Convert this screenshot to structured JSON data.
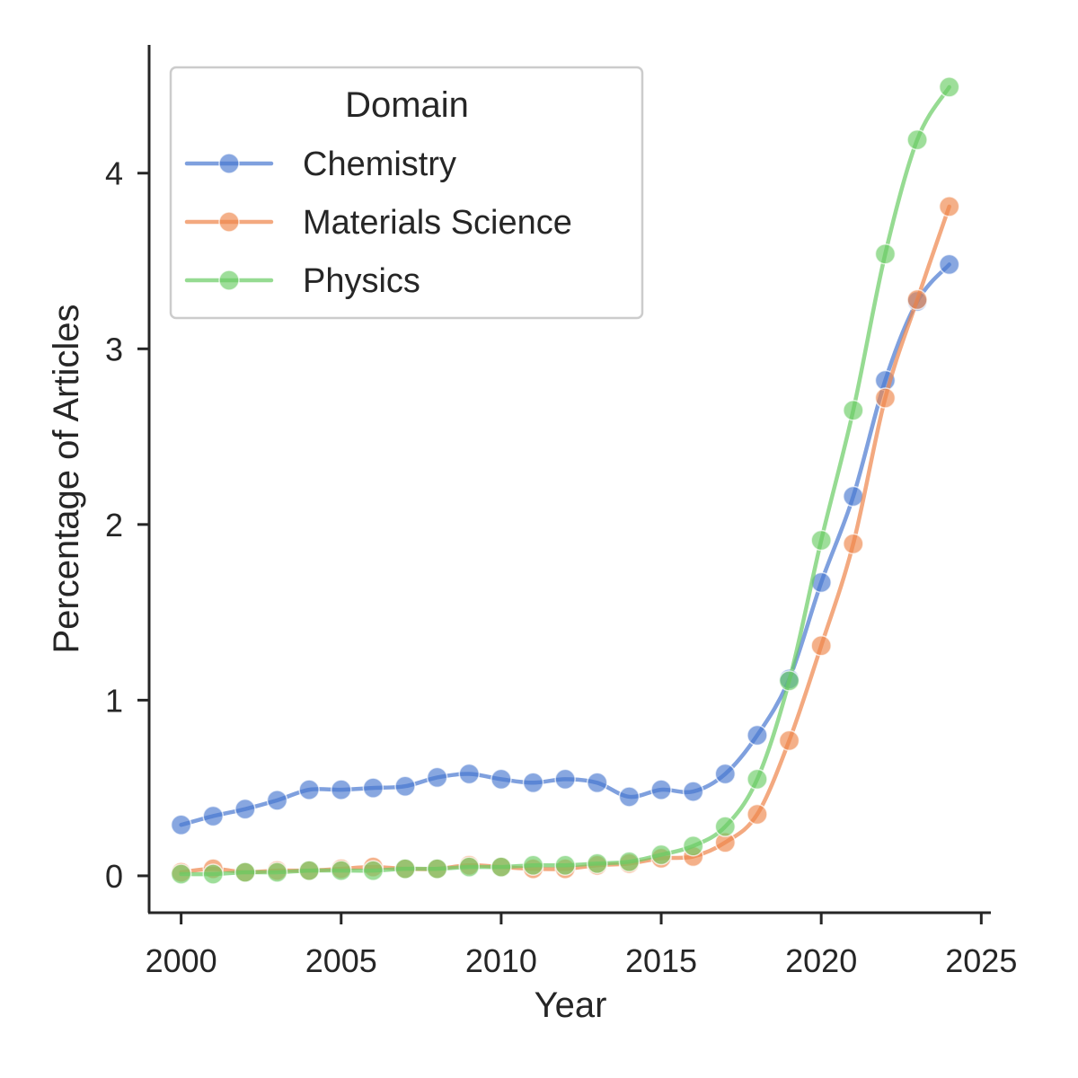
{
  "chart_data": {
    "type": "line",
    "title": "",
    "xlabel": "Year",
    "ylabel": "Percentage of Articles",
    "xlim": [
      1999,
      2025.3
    ],
    "ylim": [
      -0.21,
      4.73
    ],
    "xticks": [
      2000,
      2005,
      2010,
      2015,
      2020,
      2025
    ],
    "xtick_labels": [
      "2000",
      "2005",
      "2010",
      "2015",
      "2020",
      "2025"
    ],
    "yticks": [
      0,
      1,
      2,
      3,
      4
    ],
    "ytick_labels": [
      "0",
      "1",
      "2",
      "3",
      "4"
    ],
    "legend": {
      "title": "Domain",
      "placement": "upper-left"
    },
    "x": [
      2000,
      2001,
      2002,
      2003,
      2004,
      2005,
      2006,
      2007,
      2008,
      2009,
      2010,
      2011,
      2012,
      2013,
      2014,
      2015,
      2016,
      2017,
      2018,
      2019,
      2020,
      2021,
      2022,
      2023,
      2024
    ],
    "series": [
      {
        "name": "Chemistry",
        "color": "#4878d0",
        "values": [
          0.29,
          0.34,
          0.38,
          0.43,
          0.49,
          0.49,
          0.5,
          0.51,
          0.56,
          0.58,
          0.55,
          0.53,
          0.55,
          0.53,
          0.45,
          0.49,
          0.48,
          0.58,
          0.8,
          1.12,
          1.67,
          2.16,
          2.82,
          3.27,
          3.48
        ]
      },
      {
        "name": "Materials Science",
        "color": "#ee854a",
        "values": [
          0.02,
          0.04,
          0.02,
          0.03,
          0.03,
          0.04,
          0.05,
          0.04,
          0.04,
          0.06,
          0.05,
          0.04,
          0.04,
          0.06,
          0.07,
          0.1,
          0.11,
          0.19,
          0.35,
          0.77,
          1.31,
          1.89,
          2.72,
          3.28,
          3.81
        ]
      },
      {
        "name": "Physics",
        "color": "#6acc64",
        "values": [
          0.01,
          0.01,
          0.02,
          0.02,
          0.03,
          0.03,
          0.03,
          0.04,
          0.04,
          0.05,
          0.05,
          0.06,
          0.06,
          0.07,
          0.08,
          0.12,
          0.17,
          0.28,
          0.55,
          1.11,
          1.91,
          2.65,
          3.54,
          4.19,
          4.49
        ]
      }
    ]
  }
}
